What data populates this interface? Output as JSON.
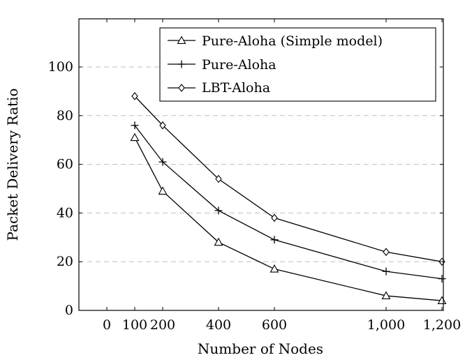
{
  "chart_data": {
    "type": "line",
    "xlabel": "Number of Nodes",
    "ylabel": "Packet Delivery Ratio",
    "xlim": [
      0,
      1200
    ],
    "ylim": [
      0,
      120
    ],
    "x_ticks": [
      0,
      100,
      200,
      400,
      600,
      1000,
      1200
    ],
    "x_tick_labels": [
      "0",
      "100",
      "200",
      "400",
      "600",
      "1,000",
      "1,200"
    ],
    "y_ticks": [
      0,
      20,
      40,
      60,
      80,
      100
    ],
    "y_tick_labels": [
      "0",
      "20",
      "40",
      "60",
      "80",
      "100"
    ],
    "grid": "horizontal dashed",
    "legend_position": "top-right",
    "x": [
      100,
      200,
      400,
      600,
      1000,
      1200
    ],
    "series": [
      {
        "name": "Pure-Aloha (Simple model)",
        "marker": "triangle",
        "values": [
          71,
          49,
          28,
          17,
          6,
          4
        ]
      },
      {
        "name": "Pure-Aloha",
        "marker": "plus",
        "values": [
          76,
          61,
          41,
          29,
          16,
          13
        ]
      },
      {
        "name": "LBT-Aloha",
        "marker": "diamond",
        "values": [
          88,
          76,
          54,
          38,
          24,
          20
        ]
      }
    ]
  }
}
